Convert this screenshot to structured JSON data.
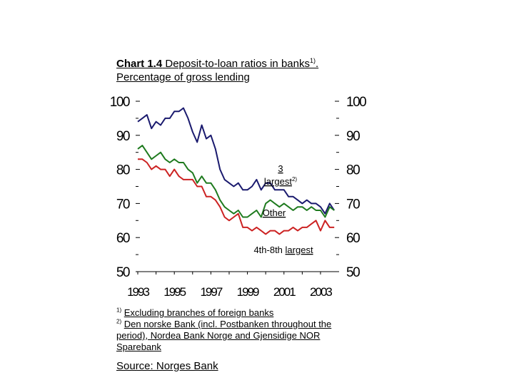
{
  "title": {
    "prefix": "Chart 1.4",
    "text": " Deposit-to-loan ratios in banks",
    "sup": "1)",
    "suffix": ".",
    "subtitle": "Percentage of gross lending"
  },
  "footnotes": [
    {
      "marker": "1)",
      "text": "Excluding branches of foreign banks"
    },
    {
      "marker": "2)",
      "text": "Den norske Bank (incl. Postbanken throughout the period), Nordea Bank Norge and Gjensidige NOR Sparebank"
    }
  ],
  "source": "Source: Norges Bank",
  "chart_data": {
    "type": "line",
    "title": "Deposit-to-loan ratios in banks",
    "ylim": [
      50,
      100
    ],
    "yticks": [
      "50",
      "60",
      "70",
      "80",
      "90",
      "100"
    ],
    "xlim": [
      1993,
      2003.9
    ],
    "xtick_labels": [
      "1993",
      "1995",
      "1997",
      "1999",
      "2001",
      "2003"
    ],
    "annotations": [
      {
        "text": "3 largest",
        "sup": "2)"
      },
      {
        "text": "Other"
      },
      {
        "text": "4th-8th ",
        "underlined": "largest"
      }
    ],
    "series": [
      {
        "name": "3 largest",
        "color": "#1a1a6e",
        "x": [
          1993.0,
          1993.25,
          1993.5,
          1993.75,
          1994.0,
          1994.25,
          1994.5,
          1994.75,
          1995.0,
          1995.25,
          1995.5,
          1995.75,
          1996.0,
          1996.25,
          1996.5,
          1996.75,
          1997.0,
          1997.25,
          1997.5,
          1997.75,
          1998.0,
          1998.25,
          1998.5,
          1998.75,
          1999.0,
          1999.25,
          1999.5,
          1999.75,
          2000.0,
          2000.25,
          2000.5,
          2000.75,
          2001.0,
          2001.25,
          2001.5,
          2001.75,
          2002.0,
          2002.25,
          2002.5,
          2002.75,
          2003.0,
          2003.25,
          2003.5,
          2003.75
        ],
        "y": [
          94,
          95,
          96,
          92,
          94,
          93,
          95,
          95,
          97,
          97,
          98,
          95,
          91,
          88,
          93,
          89,
          90,
          86,
          80,
          77,
          76,
          75,
          76,
          74,
          74,
          75,
          77,
          74,
          76,
          76,
          74,
          74,
          74,
          72,
          72,
          71,
          70,
          71,
          70,
          70,
          69,
          67,
          70,
          68
        ]
      },
      {
        "name": "Other",
        "color": "#1e7a1e",
        "x": [
          1993.0,
          1993.25,
          1993.5,
          1993.75,
          1994.0,
          1994.25,
          1994.5,
          1994.75,
          1995.0,
          1995.25,
          1995.5,
          1995.75,
          1996.0,
          1996.25,
          1996.5,
          1996.75,
          1997.0,
          1997.25,
          1997.5,
          1997.75,
          1998.0,
          1998.25,
          1998.5,
          1998.75,
          1999.0,
          1999.25,
          1999.5,
          1999.75,
          2000.0,
          2000.25,
          2000.5,
          2000.75,
          2001.0,
          2001.25,
          2001.5,
          2001.75,
          2002.0,
          2002.25,
          2002.5,
          2002.75,
          2003.0,
          2003.25,
          2003.5,
          2003.75
        ],
        "y": [
          86,
          87,
          85,
          83,
          84,
          85,
          83,
          82,
          83,
          82,
          82,
          80,
          79,
          76,
          78,
          76,
          76,
          74,
          71,
          69,
          68,
          67,
          68,
          66,
          66,
          67,
          68,
          66,
          70,
          71,
          70,
          69,
          70,
          69,
          68,
          69,
          69,
          68,
          69,
          68,
          68,
          66,
          69,
          68
        ]
      },
      {
        "name": "4th-8th largest",
        "color": "#cc2222",
        "x": [
          1993.0,
          1993.25,
          1993.5,
          1993.75,
          1994.0,
          1994.25,
          1994.5,
          1994.75,
          1995.0,
          1995.25,
          1995.5,
          1995.75,
          1996.0,
          1996.25,
          1996.5,
          1996.75,
          1997.0,
          1997.25,
          1997.5,
          1997.75,
          1998.0,
          1998.25,
          1998.5,
          1998.75,
          1999.0,
          1999.25,
          1999.5,
          1999.75,
          2000.0,
          2000.25,
          2000.5,
          2000.75,
          2001.0,
          2001.25,
          2001.5,
          2001.75,
          2002.0,
          2002.25,
          2002.5,
          2002.75,
          2003.0,
          2003.25,
          2003.5,
          2003.75
        ],
        "y": [
          83,
          83,
          82,
          80,
          81,
          80,
          80,
          78,
          80,
          78,
          77,
          77,
          77,
          75,
          75,
          72,
          72,
          71,
          69,
          66,
          65,
          66,
          67,
          63,
          63,
          62,
          63,
          62,
          61,
          62,
          62,
          61,
          62,
          62,
          63,
          62,
          63,
          63,
          64,
          65,
          62,
          65,
          63,
          63
        ]
      }
    ]
  }
}
